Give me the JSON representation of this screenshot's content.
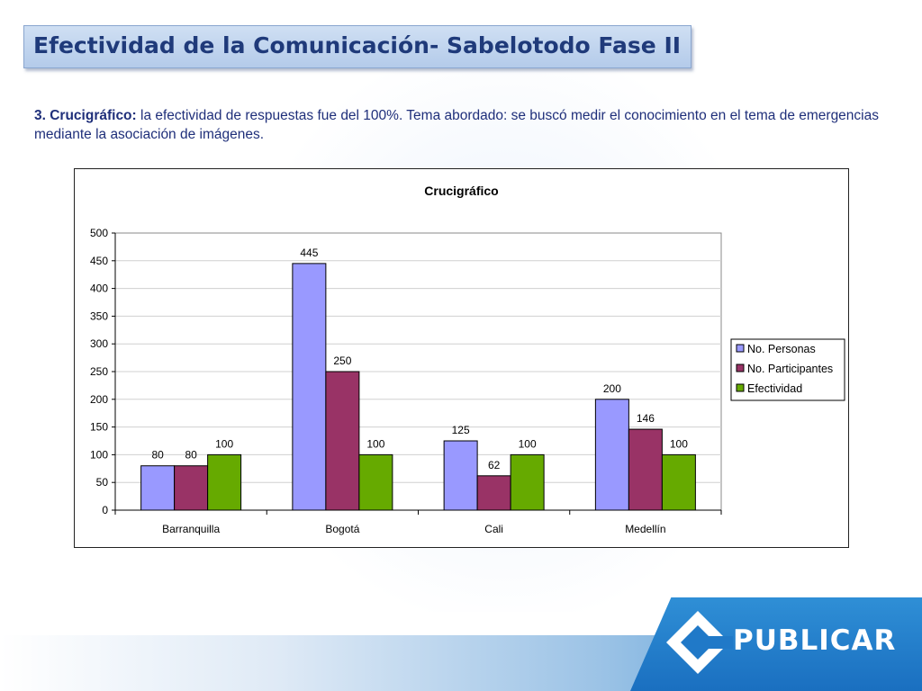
{
  "slide": {
    "title": "Efectividad de la Comunicación- Sabelotodo Fase II",
    "description_label": "3. Crucigráfico:",
    "description_text": " la efectividad de respuestas fue del 100%. Tema abordado: se buscó medir el conocimiento en el tema de emergencias mediante la asociación de imágenes."
  },
  "logo": {
    "text": "PUBLICAR",
    "color": "#1f79c8"
  },
  "chart_data": {
    "type": "bar",
    "title": "Crucigráfico",
    "xlabel": "",
    "ylabel": "",
    "categories": [
      "Barranquilla",
      "Bogotá",
      "Cali",
      "Medellín"
    ],
    "series": [
      {
        "name": "No. Personas",
        "values": [
          80,
          445,
          125,
          200
        ],
        "color": "#9999ff"
      },
      {
        "name": "No. Participantes",
        "values": [
          80,
          250,
          62,
          146
        ],
        "color": "#993366"
      },
      {
        "name": "Efectividad",
        "values": [
          100,
          100,
          100,
          100
        ],
        "color": "#66aa00"
      }
    ],
    "ylim": [
      0,
      500
    ],
    "yticks": [
      0,
      50,
      100,
      150,
      200,
      250,
      300,
      350,
      400,
      450,
      500
    ],
    "grid": true,
    "legend_position": "right"
  }
}
